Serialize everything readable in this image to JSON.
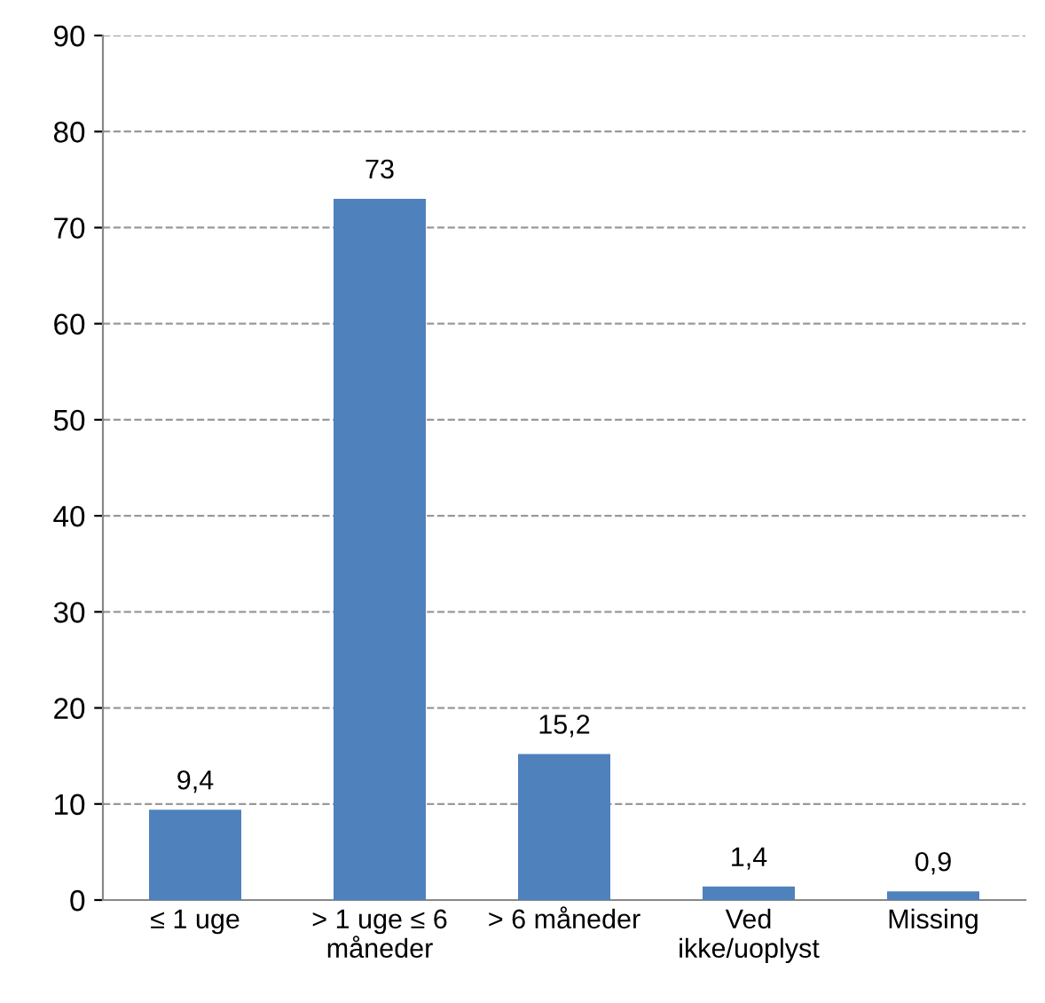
{
  "chart_data": {
    "type": "bar",
    "categories": [
      "≤ 1 uge",
      "> 1 uge ≤ 6\nmåneder",
      "> 6 måneder",
      "Ved\nikke/uoplyst",
      "Missing"
    ],
    "values": [
      9.4,
      73,
      15.2,
      1.4,
      0.9
    ],
    "value_labels": [
      "9,4",
      "73",
      "15,2",
      "1,4",
      "0,9"
    ],
    "color": "#4f81bd",
    "ylim": [
      0,
      90
    ],
    "yticks": [
      0,
      10,
      20,
      30,
      40,
      50,
      60,
      70,
      80,
      90
    ],
    "grid": "y"
  }
}
